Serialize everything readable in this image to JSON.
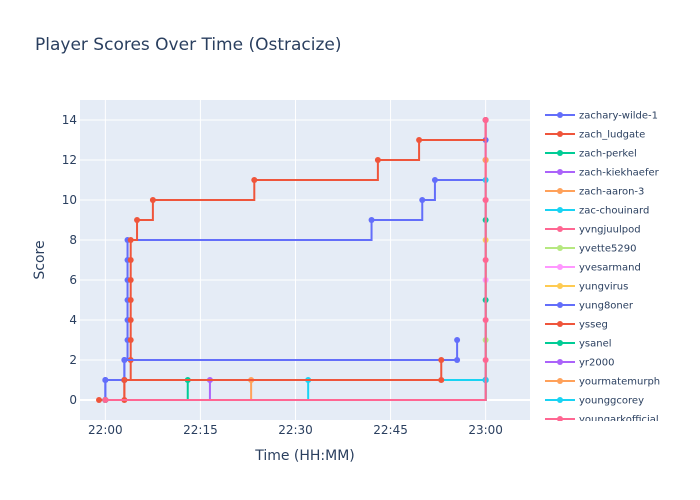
{
  "chart_data": {
    "type": "line",
    "title": "Player Scores Over Time (Ostracize)",
    "xlabel": "Time (HH:MM)",
    "ylabel": "Score",
    "x_ticks": [
      "22:00",
      "22:15",
      "22:30",
      "22:45",
      "23:00"
    ],
    "y_ticks": [
      0,
      2,
      4,
      6,
      8,
      10,
      12,
      14
    ],
    "xlim": [
      "21:56",
      "23:07"
    ],
    "ylim": [
      -1,
      15
    ],
    "grid": true,
    "legend_position": "right",
    "line_shape": "step",
    "series": [
      {
        "name": "zachary-wilde-1",
        "color": "#636efa",
        "points": [
          [
            "22:00",
            0
          ],
          [
            "22:00",
            1
          ],
          [
            "22:03",
            1
          ],
          [
            "22:03",
            2
          ],
          [
            "22:03.5",
            3
          ],
          [
            "22:03.5",
            4
          ],
          [
            "22:03.5",
            5
          ],
          [
            "22:03.5",
            6
          ],
          [
            "22:03.5",
            7
          ],
          [
            "22:03.5",
            8
          ],
          [
            "22:42",
            9
          ],
          [
            "22:50",
            10
          ],
          [
            "22:52",
            11
          ],
          [
            "23:00",
            12
          ],
          [
            "23:00",
            13
          ],
          [
            "23:00",
            14
          ]
        ]
      },
      {
        "name": "zach_ludgate",
        "color": "#ef553b",
        "points": [
          [
            "21:59",
            0
          ],
          [
            "22:03",
            0
          ],
          [
            "22:03",
            1
          ],
          [
            "22:04",
            2
          ],
          [
            "22:04",
            3
          ],
          [
            "22:04",
            4
          ],
          [
            "22:04",
            5
          ],
          [
            "22:04",
            6
          ],
          [
            "22:04",
            7
          ],
          [
            "22:04",
            8
          ],
          [
            "22:05",
            9
          ],
          [
            "22:07.5",
            10
          ],
          [
            "22:23.5",
            11
          ],
          [
            "22:43",
            12
          ],
          [
            "22:49.5",
            13
          ],
          [
            "23:00",
            14
          ]
        ]
      },
      {
        "name": "zach-perkel",
        "color": "#00cc96",
        "points": [
          [
            "22:00",
            0
          ],
          [
            "22:13",
            1
          ],
          [
            "23:00",
            1
          ],
          [
            "23:00",
            9
          ]
        ]
      },
      {
        "name": "zach-kiekhaefer",
        "color": "#ab63fa",
        "points": [
          [
            "22:00",
            0
          ],
          [
            "22:16.5",
            1
          ],
          [
            "23:00",
            1
          ]
        ]
      },
      {
        "name": "zach-aaron-3",
        "color": "#ffa15a",
        "points": [
          [
            "22:00",
            0
          ],
          [
            "22:23",
            1
          ],
          [
            "23:00",
            1
          ],
          [
            "23:00",
            12
          ]
        ]
      },
      {
        "name": "zac-chouinard",
        "color": "#19d3f3",
        "points": [
          [
            "22:00",
            0
          ],
          [
            "22:32",
            1
          ],
          [
            "23:00",
            1
          ]
        ]
      },
      {
        "name": "yvngjuulpod",
        "color": "#ff6692",
        "points": [
          [
            "22:00",
            0
          ],
          [
            "23:00",
            10
          ]
        ]
      },
      {
        "name": "yvette5290",
        "color": "#b6e880",
        "points": [
          [
            "22:00",
            0
          ],
          [
            "23:00",
            3
          ]
        ]
      },
      {
        "name": "yvesarmand",
        "color": "#ff97ff",
        "points": [
          [
            "22:00",
            0
          ],
          [
            "23:00",
            6
          ]
        ]
      },
      {
        "name": "yungvirus",
        "color": "#fecb52",
        "points": [
          [
            "22:00",
            0
          ],
          [
            "23:00",
            8
          ]
        ]
      },
      {
        "name": "yung8oner",
        "color": "#636efa",
        "points": [
          [
            "22:00",
            0
          ],
          [
            "22:00",
            1
          ],
          [
            "22:03",
            1
          ],
          [
            "22:03",
            2
          ],
          [
            "22:55.5",
            2
          ],
          [
            "22:55.5",
            3
          ]
        ]
      },
      {
        "name": "ysseg",
        "color": "#ef553b",
        "points": [
          [
            "22:00",
            0
          ],
          [
            "22:03",
            1
          ],
          [
            "22:53",
            1
          ],
          [
            "22:53",
            2
          ]
        ]
      },
      {
        "name": "ysanel",
        "color": "#00cc96",
        "points": [
          [
            "22:00",
            0
          ],
          [
            "23:00",
            1
          ],
          [
            "23:00",
            5
          ]
        ]
      },
      {
        "name": "yr2000",
        "color": "#ab63fa",
        "points": [
          [
            "22:00",
            0
          ],
          [
            "23:00",
            1
          ]
        ]
      },
      {
        "name": "yourmatemurph",
        "color": "#ffa15a",
        "points": [
          [
            "22:00",
            0
          ],
          [
            "23:00",
            12
          ]
        ]
      },
      {
        "name": "younggcorey",
        "color": "#19d3f3",
        "points": [
          [
            "22:00",
            0
          ],
          [
            "23:00",
            1
          ],
          [
            "23:00",
            11
          ]
        ]
      },
      {
        "name": "youngarkofficial",
        "color": "#ff6692",
        "points": [
          [
            "22:00",
            0
          ],
          [
            "23:00",
            2
          ],
          [
            "23:00",
            4
          ],
          [
            "23:00",
            7
          ],
          [
            "23:00",
            10
          ],
          [
            "23:00",
            14
          ]
        ]
      }
    ]
  }
}
